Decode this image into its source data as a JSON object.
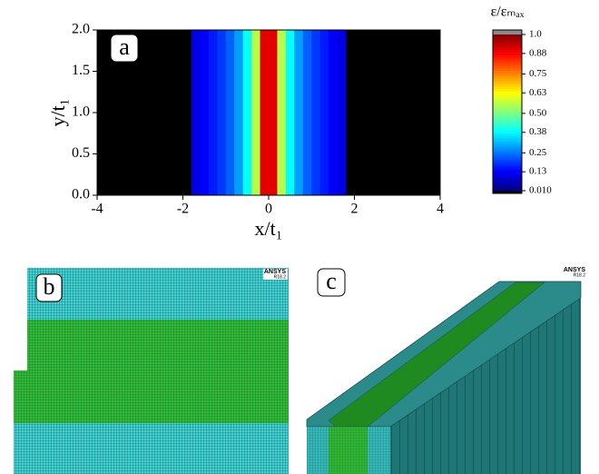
{
  "chart_data": {
    "type": "heatmap",
    "panel_label": "a",
    "x_label": "x/t₁",
    "y_label": "y/t₁",
    "xlim": [
      -4,
      4
    ],
    "xticks": [
      -4,
      -2,
      0,
      2,
      4
    ],
    "ylim": [
      0,
      2
    ],
    "yticks": [
      {
        "value": 0,
        "label": "0.0"
      },
      {
        "value": 0.5,
        "label": "0.5"
      },
      {
        "value": 1,
        "label": "1.0"
      },
      {
        "value": 1.5,
        "label": "1.5"
      },
      {
        "value": 2,
        "label": "2.0"
      }
    ],
    "x": [
      -1.7,
      -1.5,
      -1.3,
      -1.1,
      -0.9,
      -0.7,
      -0.5,
      -0.3,
      -0.1,
      0.1,
      0.3,
      0.5,
      0.7,
      0.9,
      1.1,
      1.3,
      1.5,
      1.7
    ],
    "values": [
      0.1,
      0.12,
      0.15,
      0.18,
      0.22,
      0.28,
      0.38,
      0.55,
      0.9,
      0.9,
      0.55,
      0.38,
      0.28,
      0.22,
      0.18,
      0.15,
      0.12,
      0.1
    ],
    "colormap": "jet",
    "under_color": "#000000",
    "over_color": "#8a8a8a",
    "colorbar_title": "ε/εₘₐₓ",
    "colorbar_ticks": [
      {
        "value": 0.01,
        "label": "0.010"
      },
      0.13,
      0.25,
      0.38,
      {
        "value": 0.5,
        "label": "0.50"
      },
      0.63,
      0.75,
      0.88,
      {
        "value": 1,
        "label": "1.0"
      }
    ]
  },
  "panels": [
    {
      "label": "b",
      "software": "ANSYS",
      "version": "R18.2"
    },
    {
      "label": "c",
      "software": "ANSYS",
      "version": "R18.2"
    }
  ]
}
